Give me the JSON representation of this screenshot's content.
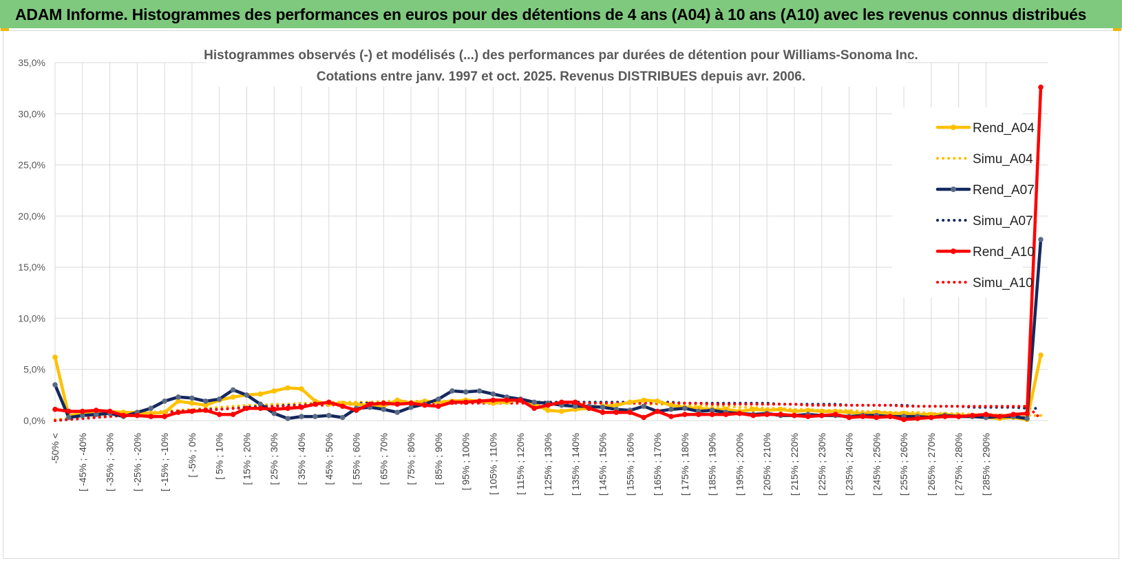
{
  "header": {
    "title": "ADAM Informe. Histogrammes des performances en euros pour des détentions de 4 ans (A04) à 10 ans (A10) avec les revenus connus distribués"
  },
  "chart_data": {
    "type": "line",
    "title": "Histogrammes observés (-) et modélisés (...) des performances par durées de détention pour Williams-Sonoma Inc.",
    "subtitle": "Cotations entre janv. 1997 et oct. 2025.  Revenus DISTRIBUES depuis avr. 2006.",
    "xlabel": "",
    "ylabel": "",
    "ylim": [
      0,
      35
    ],
    "yticks": [
      0,
      5,
      10,
      15,
      20,
      25,
      30,
      35
    ],
    "ytick_labels": [
      "0,0%",
      "5,0%",
      "10,0%",
      "15,0%",
      "20,0%",
      "25,0%",
      "30,0%",
      "35,0%"
    ],
    "legend_position": "right",
    "grid": true,
    "x_labels": [
      "-50% <",
      "[ -45% ; -40%",
      "[ -35% ; -30%",
      "[ -25% ; -20%",
      "[ -15% ; -10%",
      "[ -5% ; 0%",
      "[ 5% ; 10%",
      "[ 15% ; 20%",
      "[ 25% ; 30%",
      "[ 35% ; 40%",
      "[ 45% ; 50%",
      "[ 55% ; 60%",
      "[ 65% ; 70%",
      "[ 75% ; 80%",
      "[ 85% ; 90%",
      "[ 95% ; 100%",
      "[ 105% ; 110%",
      "[ 115% ; 120%",
      "[ 125% ; 130%",
      "[ 135% ; 140%",
      "[ 145% ; 150%",
      "[ 155% ; 160%",
      "[ 165% ; 170%",
      "[ 175% ; 180%",
      "[ 185% ; 190%",
      "[ 195% ; 200%",
      "[ 205% ; 210%",
      "[ 215% ; 220%",
      "[ 225% ; 230%",
      "[ 235% ; 240%",
      "[ 245% ; 250%",
      "[ 255% ; 260%",
      "[ 265% ; 270%",
      "[ 275% ; 280%",
      "[ 285% ; 290%"
    ],
    "series": [
      {
        "name": "Rend_A04",
        "color": "#ffc000",
        "style": "solid",
        "markers": true,
        "values": [
          6.2,
          0.5,
          0.7,
          0.8,
          0.9,
          0.8,
          0.8,
          0.7,
          0.8,
          1.9,
          1.7,
          1.5,
          2.0,
          2.3,
          2.5,
          2.6,
          2.9,
          3.2,
          3.1,
          1.9,
          1.6,
          1.7,
          1.6,
          1.5,
          1.4,
          2.0,
          1.7,
          1.9,
          1.8,
          1.9,
          2.0,
          1.9,
          1.7,
          1.8,
          2.1,
          1.6,
          1.0,
          0.9,
          1.1,
          1.2,
          1.4,
          1.5,
          1.8,
          2.0,
          1.9,
          1.5,
          1.3,
          1.2,
          1.1,
          1.1,
          0.9,
          1.1,
          1.0,
          1.1,
          0.9,
          1.0,
          0.9,
          0.9,
          0.8,
          0.7,
          0.8,
          0.7,
          0.7,
          0.6,
          0.6,
          0.6,
          0.5,
          0.4,
          0.3,
          0.2,
          0.3,
          0.1,
          6.4
        ]
      },
      {
        "name": "Simu_A04",
        "color": "#ffc000",
        "style": "dotted",
        "markers": false,
        "values": [
          0.1,
          0.2,
          0.3,
          0.4,
          0.5,
          0.6,
          0.7,
          0.8,
          0.9,
          1.0,
          1.1,
          1.2,
          1.3,
          1.4,
          1.5,
          1.5,
          1.6,
          1.6,
          1.7,
          1.7,
          1.8,
          1.8,
          1.8,
          1.8,
          1.9,
          1.9,
          1.9,
          1.9,
          1.9,
          1.9,
          1.9,
          1.9,
          1.9,
          1.9,
          1.9,
          1.8,
          1.8,
          1.8,
          1.8,
          1.8,
          1.7,
          1.7,
          1.7,
          1.6,
          1.6,
          1.6,
          1.5,
          1.5,
          1.4,
          1.4,
          1.3,
          1.3,
          1.2,
          1.2,
          1.1,
          1.1,
          1.0,
          1.0,
          1.0,
          0.9,
          0.9,
          0.8,
          0.8,
          0.8,
          0.7,
          0.7,
          0.7,
          0.6,
          0.6,
          0.6,
          0.5,
          0.5,
          0.5
        ]
      },
      {
        "name": "Rend_A07",
        "color": "#15285e",
        "style": "solid",
        "markers": true,
        "values": [
          3.5,
          0.3,
          0.5,
          0.6,
          0.7,
          0.4,
          0.8,
          1.2,
          1.9,
          2.3,
          2.2,
          1.9,
          2.1,
          3.0,
          2.5,
          1.6,
          0.7,
          0.2,
          0.4,
          0.4,
          0.5,
          0.3,
          1.2,
          1.3,
          1.1,
          0.8,
          1.3,
          1.6,
          2.1,
          2.9,
          2.8,
          2.9,
          2.6,
          2.3,
          2.1,
          1.8,
          1.7,
          1.5,
          1.4,
          1.4,
          1.3,
          1.1,
          1.0,
          1.4,
          0.9,
          1.1,
          1.2,
          0.9,
          1.0,
          0.8,
          0.7,
          0.6,
          0.7,
          0.5,
          0.5,
          0.6,
          0.5,
          0.5,
          0.4,
          0.5,
          0.5,
          0.4,
          0.4,
          0.4,
          0.3,
          0.5,
          0.4,
          0.4,
          0.3,
          0.4,
          0.4,
          0.2,
          17.7
        ]
      },
      {
        "name": "Simu_A07",
        "color": "#15285e",
        "style": "dotted",
        "markers": false,
        "values": [
          0.0,
          0.1,
          0.2,
          0.3,
          0.4,
          0.5,
          0.6,
          0.7,
          0.8,
          0.9,
          1.0,
          1.1,
          1.1,
          1.2,
          1.3,
          1.4,
          1.4,
          1.5,
          1.5,
          1.6,
          1.6,
          1.6,
          1.7,
          1.7,
          1.7,
          1.7,
          1.8,
          1.8,
          1.8,
          1.8,
          1.8,
          1.8,
          1.8,
          1.8,
          1.8,
          1.8,
          1.8,
          1.8,
          1.8,
          1.8,
          1.8,
          1.8,
          1.8,
          1.8,
          1.8,
          1.8,
          1.7,
          1.7,
          1.7,
          1.7,
          1.7,
          1.7,
          1.7,
          1.6,
          1.6,
          1.6,
          1.6,
          1.6,
          1.5,
          1.5,
          1.5,
          1.5,
          1.5,
          1.4,
          1.4,
          1.4,
          1.4,
          1.3,
          1.3,
          1.3,
          1.3,
          1.2,
          1.2
        ]
      },
      {
        "name": "Rend_A10",
        "color": "#ff0000",
        "style": "solid",
        "markers": true,
        "values": [
          1.1,
          0.9,
          0.9,
          1.0,
          0.9,
          0.5,
          0.5,
          0.4,
          0.4,
          0.8,
          0.9,
          1.0,
          0.6,
          0.6,
          1.2,
          1.2,
          1.1,
          1.2,
          1.3,
          1.6,
          1.8,
          1.4,
          1.0,
          1.6,
          1.7,
          1.6,
          1.7,
          1.5,
          1.4,
          1.8,
          1.8,
          1.9,
          2.0,
          2.0,
          2.0,
          1.2,
          1.5,
          1.8,
          1.8,
          1.2,
          0.8,
          0.8,
          0.8,
          0.3,
          0.9,
          0.4,
          0.6,
          0.6,
          0.6,
          0.6,
          0.7,
          0.5,
          0.6,
          0.6,
          0.5,
          0.4,
          0.5,
          0.6,
          0.3,
          0.4,
          0.3,
          0.4,
          0.1,
          0.2,
          0.3,
          0.4,
          0.4,
          0.5,
          0.6,
          0.4,
          0.6,
          0.7,
          32.6
        ]
      },
      {
        "name": "Simu_A10",
        "color": "#ff0000",
        "style": "dotted",
        "markers": false,
        "values": [
          0.0,
          0.1,
          0.2,
          0.3,
          0.4,
          0.5,
          0.6,
          0.7,
          0.8,
          0.9,
          1.0,
          1.0,
          1.1,
          1.2,
          1.2,
          1.3,
          1.4,
          1.4,
          1.5,
          1.5,
          1.5,
          1.6,
          1.6,
          1.6,
          1.6,
          1.7,
          1.7,
          1.7,
          1.7,
          1.7,
          1.7,
          1.7,
          1.7,
          1.7,
          1.7,
          1.7,
          1.7,
          1.7,
          1.7,
          1.7,
          1.7,
          1.7,
          1.7,
          1.7,
          1.7,
          1.7,
          1.7,
          1.7,
          1.6,
          1.6,
          1.6,
          1.6,
          1.6,
          1.6,
          1.6,
          1.5,
          1.5,
          1.5,
          1.5,
          1.5,
          1.5,
          1.5,
          1.4,
          1.4,
          1.4,
          1.4,
          1.4,
          1.4,
          1.4,
          1.4,
          1.4,
          1.4,
          0.2
        ]
      }
    ]
  }
}
